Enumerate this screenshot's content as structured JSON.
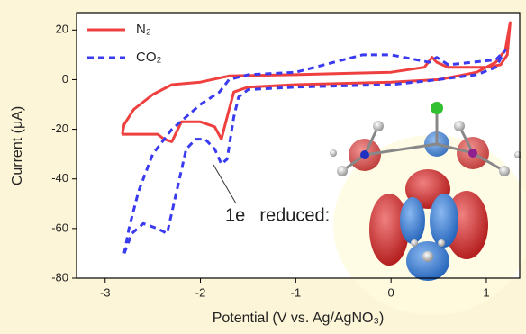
{
  "chart_data": {
    "type": "line",
    "xlabel": "Potential (V vs. Ag/AgNO₃)",
    "ylabel": "Current (μA)",
    "annotation": "1e⁻ reduced:",
    "xlim": [
      -3.3,
      1.35
    ],
    "ylim": [
      -80,
      27
    ],
    "xticks": [
      -3,
      -2,
      -1,
      0,
      1
    ],
    "yticks": [
      -80,
      -60,
      -40,
      -20,
      0,
      20
    ],
    "legend": "upper left",
    "series": [
      {
        "name": "N₂",
        "color": "#ef4040",
        "dash": false,
        "x": [
          -2.82,
          -2.6,
          -2.45,
          -2.38,
          -2.3,
          -2.2,
          -2.0,
          -1.85,
          -1.78,
          -1.72,
          -1.65,
          -1.5,
          -1.0,
          0.0,
          0.5,
          0.9,
          1.1,
          1.2,
          1.25,
          1.22,
          1.15,
          1.0,
          0.6,
          0.48,
          0.43,
          0.35,
          0.0,
          -1.0,
          -1.7,
          -2.0,
          -2.3,
          -2.5,
          -2.7,
          -2.8,
          -2.82
        ],
        "values": [
          -22,
          -22,
          -22,
          -24,
          -25,
          -17,
          -17,
          -19,
          -24,
          -15,
          -5,
          -3,
          -2,
          -1,
          0,
          3,
          7,
          12,
          23,
          10,
          6,
          5,
          5,
          7,
          9,
          5,
          3,
          2,
          1.5,
          -1,
          -2,
          -6,
          -12,
          -18,
          -22
        ]
      },
      {
        "name": "CO₂",
        "color": "#3a3af0",
        "dash": true,
        "x": [
          -2.8,
          -2.72,
          -2.6,
          -2.45,
          -2.35,
          -2.25,
          -2.15,
          -2.05,
          -1.95,
          -1.85,
          -1.78,
          -1.72,
          -1.65,
          -1.6,
          -1.5,
          -1.0,
          0.0,
          0.5,
          0.9,
          1.1,
          1.2,
          1.1,
          0.6,
          0.48,
          0.4,
          0.0,
          -0.3,
          -0.6,
          -1.0,
          -1.5,
          -1.7,
          -1.8,
          -2.0,
          -2.3,
          -2.5,
          -2.65,
          -2.75,
          -2.8
        ],
        "values": [
          -70,
          -62,
          -58,
          -60,
          -62,
          -45,
          -28,
          -24,
          -24,
          -28,
          -34,
          -32,
          -15,
          -7,
          -4,
          -3,
          -2,
          0,
          2,
          5,
          12,
          8,
          6,
          9,
          7,
          10,
          10,
          7,
          3,
          2,
          0,
          -5,
          -10,
          -20,
          -30,
          -45,
          -60,
          -70
        ]
      }
    ]
  }
}
